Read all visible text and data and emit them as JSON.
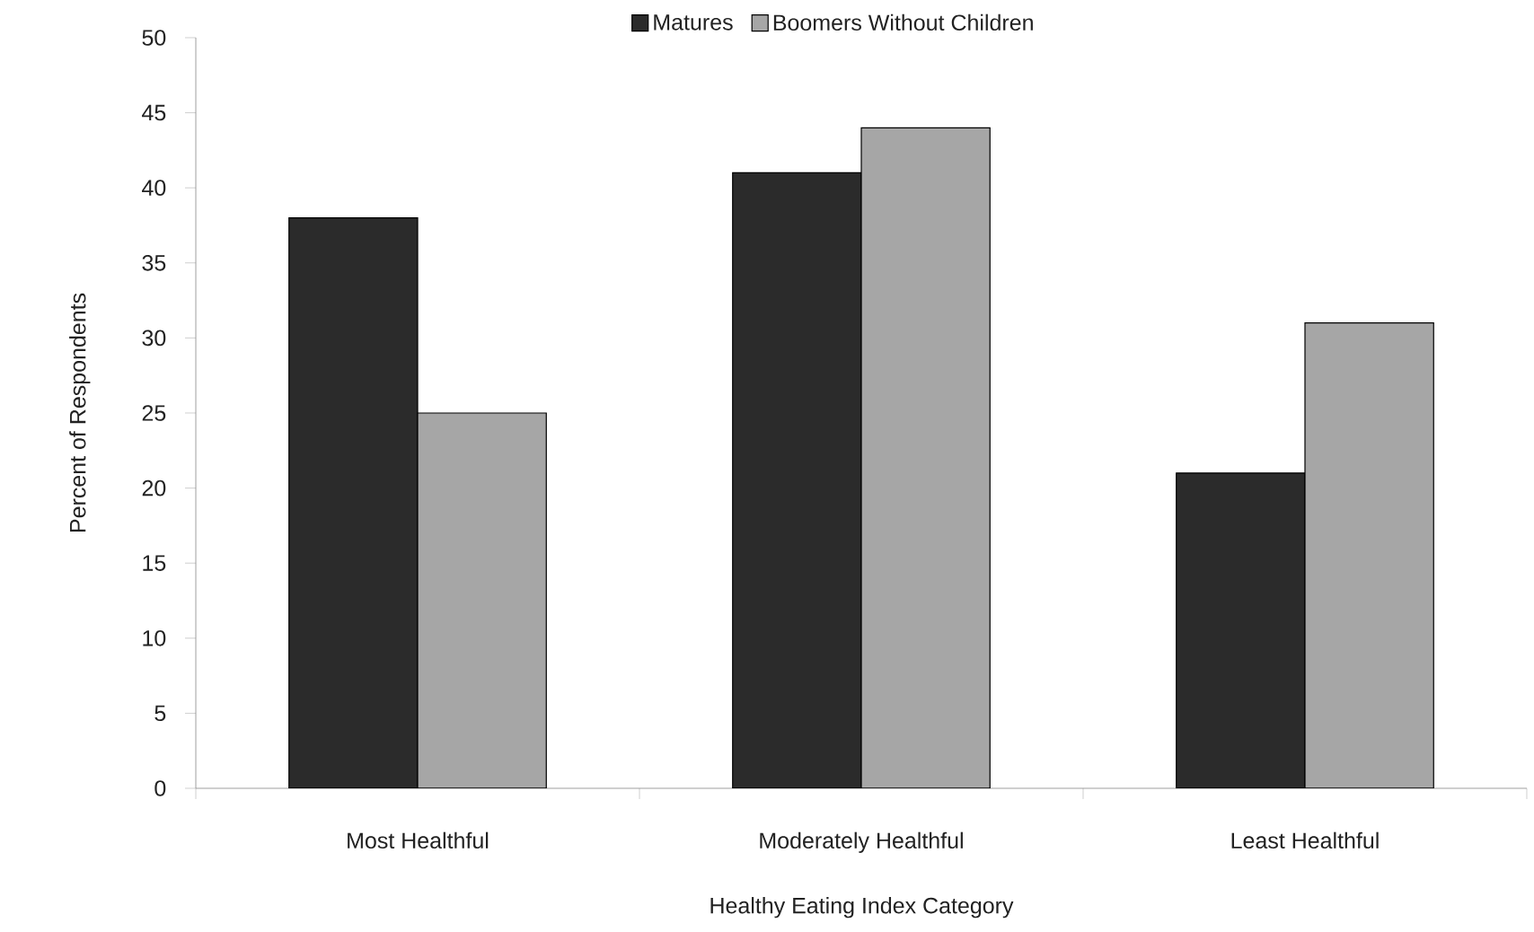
{
  "chart_data": {
    "type": "bar",
    "categories": [
      "Most Healthful",
      "Moderately Healthful",
      "Least Healthful"
    ],
    "series": [
      {
        "name": "Matures",
        "color": "#2b2b2b",
        "values": [
          38,
          41,
          21
        ]
      },
      {
        "name": "Boomers Without Children",
        "color": "#a6a6a6",
        "values": [
          25,
          44,
          31
        ]
      }
    ],
    "xlabel": "Healthy Eating Index Category",
    "ylabel": "Percent of Respondents",
    "ylim": [
      0,
      50
    ],
    "yticks": [
      0,
      5,
      10,
      15,
      20,
      25,
      30,
      35,
      40,
      45,
      50
    ],
    "legend": "top"
  }
}
